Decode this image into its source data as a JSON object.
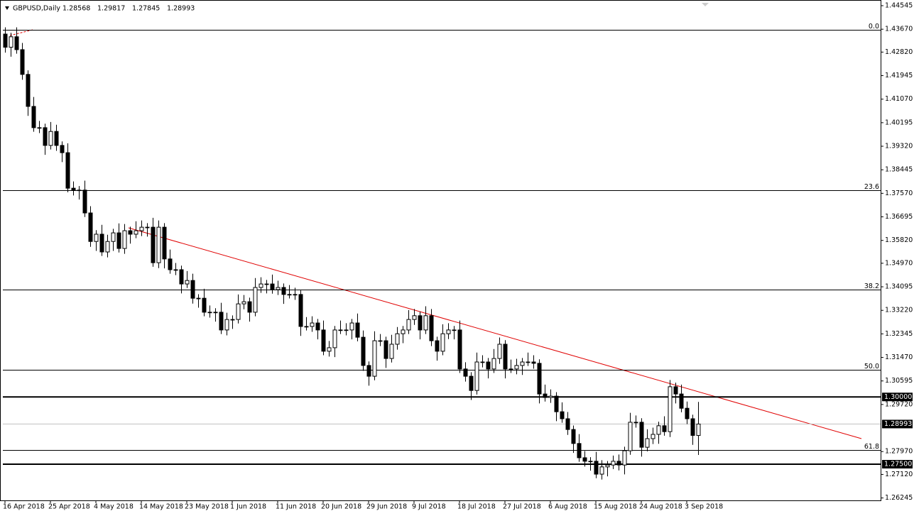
{
  "chart_data": {
    "type": "candlestick",
    "title": "GBPUSD,Daily",
    "categories": [
      "16 Apr 2018",
      null,
      null,
      null,
      null,
      null,
      null,
      null,
      "25 Apr 2018",
      null,
      null,
      null,
      null,
      null,
      null,
      null,
      "4 May 2018",
      null,
      null,
      null,
      null,
      null,
      null,
      null,
      "14 May 2018",
      null,
      null,
      null,
      null,
      null,
      null,
      null,
      "23 May 2018",
      null,
      null,
      null,
      null,
      null,
      null,
      null,
      "1 Jun 2018",
      null,
      null,
      null,
      null,
      null,
      null,
      null,
      "11 Jun 2018",
      null,
      null,
      null,
      null,
      null,
      null,
      null,
      "20 Jun 2018",
      null,
      null,
      null,
      null,
      null,
      null,
      null,
      "29 Jun 2018",
      null,
      null,
      null,
      null,
      null,
      null,
      null,
      "9 Jul 2018",
      null,
      null,
      null,
      null,
      null,
      null,
      null,
      "18 Jul 2018",
      null,
      null,
      null,
      null,
      null,
      null,
      null,
      "27 Jul 2018",
      null,
      null,
      null,
      null,
      null,
      null,
      null,
      "6 Aug 2018",
      null,
      null,
      null,
      null,
      null,
      null,
      null,
      "15 Aug 2018",
      null,
      null,
      null,
      null,
      null,
      null,
      null,
      "24 Aug 2018",
      null,
      null,
      null,
      null,
      null,
      null,
      null,
      "3 Sep 2018",
      null,
      null
    ],
    "open": [
      1.4349,
      1.43,
      1.4339,
      1.4291,
      1.4199,
      1.408,
      1.4001,
      1.4001,
      1.3935,
      1.3987,
      1.3935,
      1.3908,
      1.3776,
      1.3769,
      1.3769,
      1.3684,
      1.3578,
      1.3605,
      1.3539,
      1.3578,
      1.361,
      1.3552,
      1.3618,
      1.3605,
      1.3618,
      1.3631,
      1.3631,
      1.3499,
      1.3631,
      1.3513,
      1.3473,
      1.3473,
      1.342,
      1.3433,
      1.3367,
      1.3367,
      1.3315,
      1.3315,
      1.3315,
      1.3249,
      1.3288,
      1.3288,
      1.3346,
      1.3354,
      1.3315,
      1.3407,
      1.342,
      1.342,
      1.3399,
      1.3407,
      1.3381,
      1.3381,
      1.3381,
      1.3262,
      1.3262,
      1.3275,
      1.3249,
      1.317,
      1.3183,
      1.3249,
      1.3249,
      1.3249,
      1.3275,
      1.3222,
      1.3117,
      1.3077,
      1.3209,
      1.3209,
      1.3143,
      1.3196,
      1.3235,
      1.3249,
      1.3288,
      1.3302,
      1.3249,
      1.3302,
      1.3209,
      1.317,
      1.3235,
      1.3249,
      1.3249,
      1.3104,
      1.3077,
      1.3024,
      1.313,
      1.313,
      1.3104,
      1.3143,
      1.3196,
      1.3104,
      1.3104,
      1.3117,
      1.313,
      1.313,
      1.3125,
      1.3011,
      1.2998,
      1.3003,
      1.2945,
      1.2919,
      1.2879,
      1.2827,
      1.2774,
      1.2761,
      1.2761,
      1.2713,
      1.274,
      1.2747,
      1.2761,
      1.2747,
      1.28,
      1.2906,
      1.2906,
      1.2813,
      1.2845,
      1.2861,
      1.2893,
      1.2871,
      1.3038,
      1.3011,
      1.2958,
      1.2919,
      1.28568
    ],
    "high": [
      1.4374,
      1.4354,
      1.4374,
      1.4316,
      1.4214,
      1.4115,
      1.4026,
      1.4016,
      1.4022,
      1.4012,
      1.395,
      1.3943,
      1.3801,
      1.3784,
      1.3804,
      1.3709,
      1.362,
      1.364,
      1.3603,
      1.3625,
      1.3645,
      1.3643,
      1.3633,
      1.3653,
      1.3656,
      1.3646,
      1.3666,
      1.3656,
      1.3646,
      1.3548,
      1.3498,
      1.3488,
      1.3468,
      1.3458,
      1.3382,
      1.3402,
      1.334,
      1.333,
      1.335,
      1.3313,
      1.3303,
      1.3381,
      1.3379,
      1.3369,
      1.3442,
      1.3445,
      1.3435,
      1.3455,
      1.3432,
      1.3422,
      1.3416,
      1.3406,
      1.3396,
      1.3297,
      1.33,
      1.329,
      1.3284,
      1.3208,
      1.3264,
      1.3284,
      1.3274,
      1.329,
      1.331,
      1.3247,
      1.3132,
      1.3244,
      1.3234,
      1.3224,
      1.3231,
      1.326,
      1.3264,
      1.3323,
      1.3327,
      1.3317,
      1.3337,
      1.3327,
      1.3224,
      1.327,
      1.3274,
      1.3264,
      1.3284,
      1.3129,
      1.3092,
      1.3165,
      1.3155,
      1.3145,
      1.3178,
      1.3221,
      1.3211,
      1.3139,
      1.3142,
      1.3145,
      1.3165,
      1.3155,
      1.314,
      1.3046,
      1.3028,
      1.3018,
      1.298,
      1.2944,
      1.2894,
      1.2862,
      1.2799,
      1.2776,
      1.2796,
      1.2765,
      1.2762,
      1.2782,
      1.2786,
      1.2815,
      1.2941,
      1.2931,
      1.2921,
      1.288,
      1.2886,
      1.2908,
      1.2928,
      1.3063,
      1.3053,
      1.3046,
      1.2983,
      1.2934,
      1.29817
    ],
    "low": [
      1.428,
      1.4265,
      1.4276,
      1.4179,
      1.4045,
      1.3986,
      1.3981,
      1.39,
      1.392,
      1.3915,
      1.3873,
      1.3761,
      1.3749,
      1.3734,
      1.3669,
      1.3558,
      1.3543,
      1.3524,
      1.3519,
      1.3543,
      1.3537,
      1.3532,
      1.357,
      1.359,
      1.3598,
      1.3596,
      1.3484,
      1.3479,
      1.3478,
      1.3458,
      1.3453,
      1.3385,
      1.3405,
      1.3347,
      1.3332,
      1.33,
      1.3295,
      1.328,
      1.3234,
      1.3229,
      1.3253,
      1.3273,
      1.3326,
      1.328,
      1.33,
      1.3387,
      1.3385,
      1.3384,
      1.3379,
      1.3346,
      1.3366,
      1.3361,
      1.3227,
      1.3247,
      1.3242,
      1.3214,
      1.3155,
      1.315,
      1.3148,
      1.3234,
      1.3229,
      1.3214,
      1.3207,
      1.3097,
      1.3042,
      1.3062,
      1.3189,
      1.3108,
      1.3128,
      1.3176,
      1.32,
      1.3234,
      1.3268,
      1.3214,
      1.3234,
      1.3189,
      1.3135,
      1.3155,
      1.3215,
      1.3214,
      1.3089,
      1.3057,
      1.2989,
      1.3009,
      1.311,
      1.3069,
      1.3089,
      1.3123,
      1.3069,
      1.3089,
      1.3084,
      1.3082,
      1.3115,
      1.3105,
      1.2976,
      1.2983,
      1.2978,
      1.291,
      1.2904,
      1.2859,
      1.2792,
      1.2759,
      1.2741,
      1.2726,
      1.2698,
      1.2693,
      1.2705,
      1.2732,
      1.2727,
      1.2712,
      1.2785,
      1.2886,
      1.2778,
      1.2798,
      1.2825,
      1.2826,
      1.2856,
      1.2851,
      1.2976,
      1.2943,
      1.2899,
      1.2822,
      1.27845
    ],
    "close": [
      1.43,
      1.4339,
      1.4291,
      1.4199,
      1.408,
      1.4001,
      1.4001,
      1.3935,
      1.3987,
      1.3935,
      1.3908,
      1.3776,
      1.3769,
      1.3769,
      1.3684,
      1.3578,
      1.3605,
      1.3539,
      1.3578,
      1.361,
      1.3552,
      1.3618,
      1.3605,
      1.3618,
      1.3631,
      1.3631,
      1.3499,
      1.3631,
      1.3513,
      1.3473,
      1.3473,
      1.342,
      1.3433,
      1.3367,
      1.3367,
      1.3315,
      1.3315,
      1.3315,
      1.3249,
      1.3288,
      1.3288,
      1.3346,
      1.3354,
      1.3315,
      1.3407,
      1.342,
      1.342,
      1.3399,
      1.3407,
      1.3381,
      1.3381,
      1.3381,
      1.3262,
      1.3262,
      1.3275,
      1.3249,
      1.317,
      1.3183,
      1.3249,
      1.3249,
      1.3249,
      1.3275,
      1.3222,
      1.3117,
      1.3077,
      1.3209,
      1.3209,
      1.3143,
      1.3196,
      1.3235,
      1.3249,
      1.3288,
      1.3302,
      1.3249,
      1.3302,
      1.3209,
      1.317,
      1.3235,
      1.3249,
      1.3249,
      1.3104,
      1.3077,
      1.3024,
      1.313,
      1.313,
      1.3104,
      1.3143,
      1.3196,
      1.3104,
      1.3104,
      1.3117,
      1.313,
      1.313,
      1.3125,
      1.3011,
      1.2998,
      1.3003,
      1.2945,
      1.2919,
      1.2879,
      1.2827,
      1.2774,
      1.2761,
      1.2761,
      1.2713,
      1.274,
      1.2747,
      1.2761,
      1.2747,
      1.28,
      1.2906,
      1.2906,
      1.2813,
      1.2845,
      1.2861,
      1.2893,
      1.2871,
      1.3038,
      1.3011,
      1.2958,
      1.2919,
      1.2857,
      1.28993
    ],
    "ylim": [
      1.26155,
      1.44756
    ],
    "yticks": [
      1.44545,
      {
        "value": 1.4367,
        "label": "1.43670"
      },
      {
        "value": 1.4282,
        "label": "1.42820"
      },
      1.41945,
      {
        "value": 1.4107,
        "label": "1.41070"
      },
      1.40195,
      {
        "value": 1.3932,
        "label": "1.39320"
      },
      1.38445,
      {
        "value": 1.3757,
        "label": "1.37570"
      },
      1.36695,
      {
        "value": 1.3582,
        "label": "1.35820"
      },
      {
        "value": 1.3497,
        "label": "1.34970"
      },
      1.34095,
      {
        "value": 1.3322,
        "label": "1.33220"
      },
      1.32345,
      {
        "value": 1.3147,
        "label": "1.31470"
      },
      1.30595,
      {
        "value": 1.2972,
        "label": "1.29720"
      },
      {
        "value": 1.2797,
        "label": "1.27970"
      },
      {
        "value": 1.2712,
        "label": "1.27120"
      },
      1.26245
    ],
    "fib_levels": [
      {
        "label": "0.0",
        "price": 1.4365
      },
      {
        "label": "23.6",
        "price": 1.3769
      },
      {
        "label": "38.2",
        "price": 1.3399
      },
      {
        "label": "50.0",
        "price": 1.3101
      },
      {
        "label": "61.8",
        "price": 1.2803
      }
    ],
    "horizontal_lines": [
      {
        "value": 1.3,
        "label": "1.30000"
      },
      {
        "value": 1.275,
        "label": "1.27500"
      }
    ],
    "bull_color": "#ffffff",
    "bear_color": "#000000"
  }
}
